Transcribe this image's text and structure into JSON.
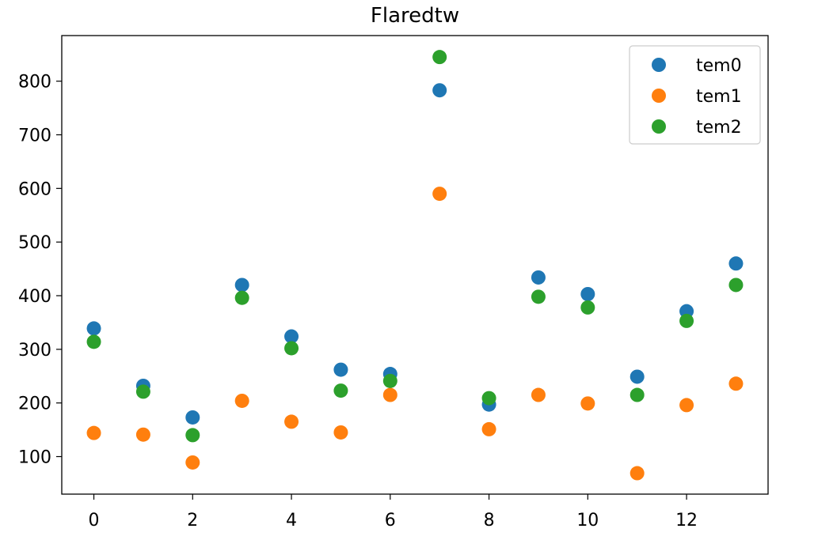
{
  "chart_data": {
    "type": "scatter",
    "title": "Flaredtw",
    "xlabel": "",
    "ylabel": "",
    "xlim": [
      -0.65,
      13.65
    ],
    "ylim": [
      30,
      885
    ],
    "xticks": [
      0,
      2,
      4,
      6,
      8,
      10,
      12
    ],
    "yticks": [
      100,
      200,
      300,
      400,
      500,
      600,
      700,
      800
    ],
    "grid": false,
    "legend_position": "top-right",
    "x": [
      0,
      1,
      2,
      3,
      4,
      5,
      6,
      7,
      8,
      9,
      10,
      11,
      12,
      13
    ],
    "series": [
      {
        "name": "tem0",
        "color": "#1f77b4",
        "values": [
          339,
          232,
          173,
          420,
          324,
          262,
          254,
          783,
          197,
          434,
          403,
          249,
          371,
          460
        ]
      },
      {
        "name": "tem1",
        "color": "#ff7f0e",
        "values": [
          144,
          141,
          89,
          204,
          165,
          145,
          215,
          590,
          151,
          215,
          199,
          69,
          196,
          236
        ]
      },
      {
        "name": "tem2",
        "color": "#2ca02c",
        "values": [
          314,
          221,
          140,
          396,
          302,
          223,
          241,
          845,
          209,
          398,
          378,
          215,
          353,
          420
        ]
      }
    ]
  }
}
